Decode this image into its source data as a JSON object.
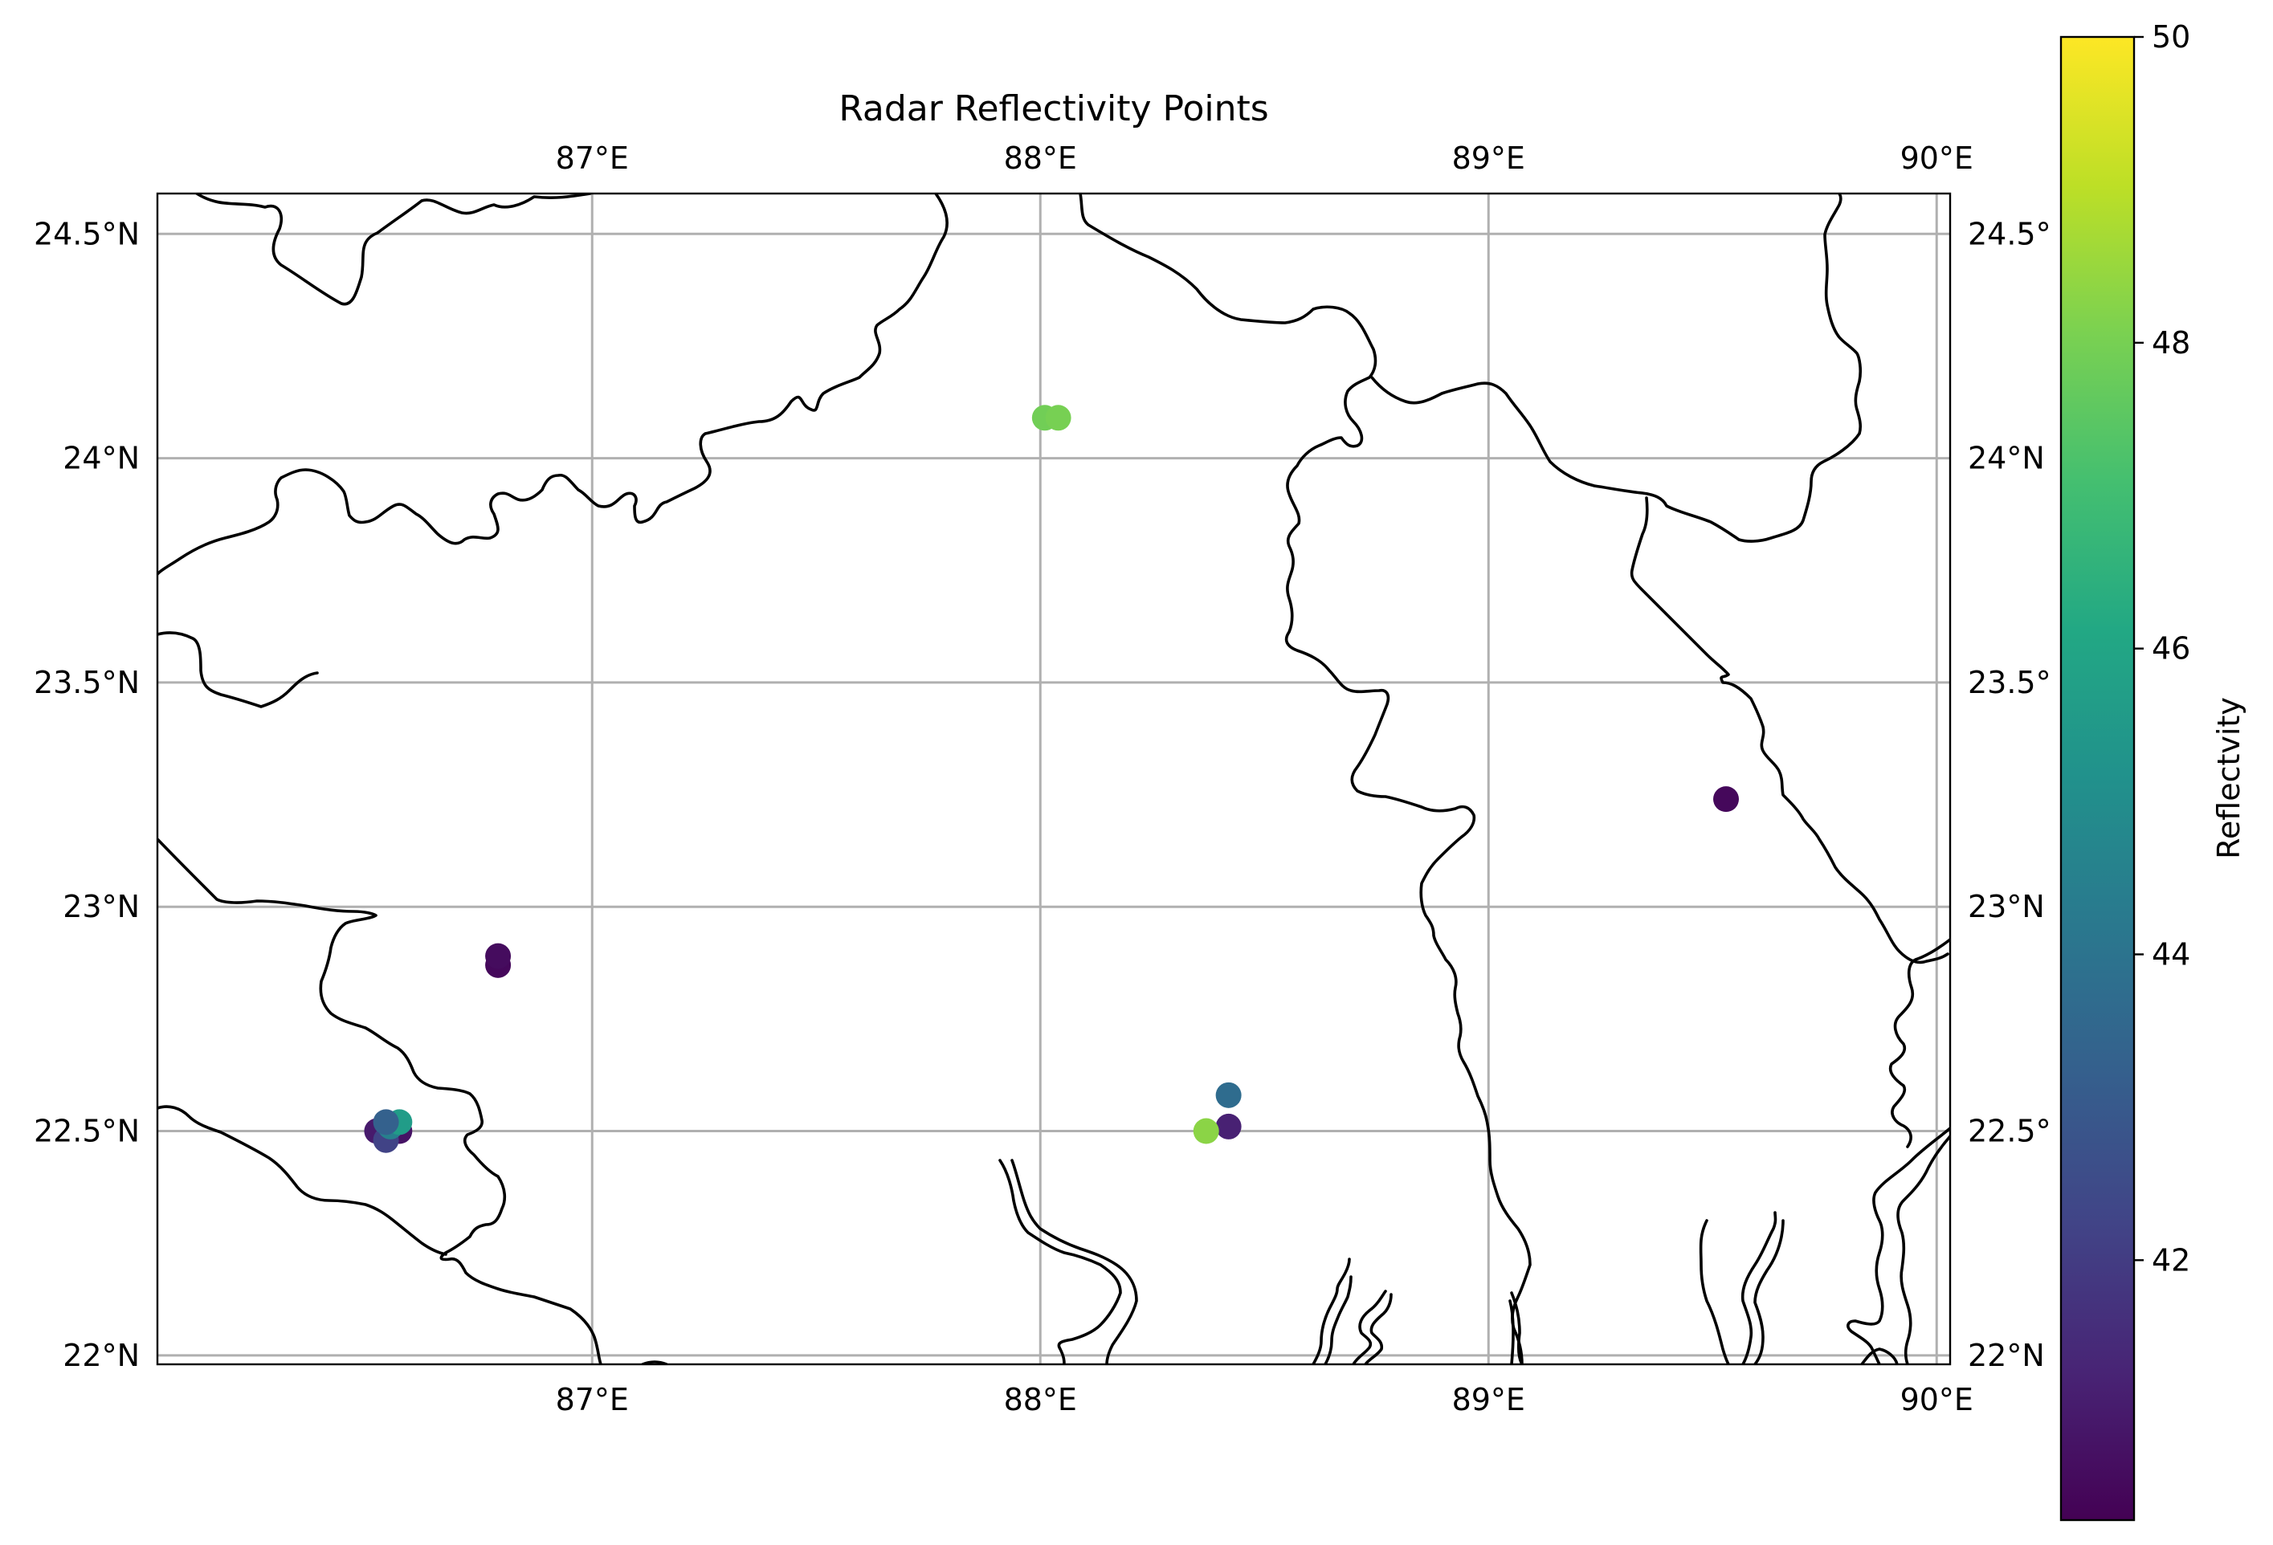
{
  "chart_data": {
    "type": "scatter",
    "title": "Radar Reflectivity Points",
    "projection": "PlateCarree",
    "xlim": [
      86.03,
      90.03
    ],
    "ylim": [
      21.98,
      24.59
    ],
    "x_ticks": [
      87,
      88,
      89,
      90
    ],
    "x_tick_labels": [
      "87°E",
      "88°E",
      "89°E",
      "90°E"
    ],
    "y_ticks": [
      22,
      22.5,
      23,
      23.5,
      24,
      24.5
    ],
    "y_tick_labels_left": [
      "22°N",
      "22.5°N",
      "23°N",
      "23.5°N",
      "24°N",
      "24.5°N"
    ],
    "y_tick_labels_right": [
      "22°N",
      "22.5°",
      "23°N",
      "23.5°",
      "24°N",
      "24.5°"
    ],
    "grid": true,
    "coastlines": true,
    "colormap": "viridis",
    "colorbar": {
      "label": "Reflectvity",
      "vmin": 40.3,
      "vmax": 50,
      "ticks": [
        42,
        44,
        46,
        48,
        50
      ],
      "tick_labels": [
        "42",
        "44",
        "46",
        "48",
        "50"
      ]
    },
    "points": [
      {
        "lon": 88.01,
        "lat": 24.09,
        "value": 47.9
      },
      {
        "lon": 88.04,
        "lat": 24.09,
        "value": 48.0
      },
      {
        "lon": 86.79,
        "lat": 22.87,
        "value": 40.5
      },
      {
        "lon": 86.79,
        "lat": 22.89,
        "value": 40.6
      },
      {
        "lon": 89.53,
        "lat": 23.24,
        "value": 40.5
      },
      {
        "lon": 88.42,
        "lat": 22.58,
        "value": 43.7
      },
      {
        "lon": 88.42,
        "lat": 22.51,
        "value": 41.2
      },
      {
        "lon": 88.37,
        "lat": 22.5,
        "value": 48.3
      },
      {
        "lon": 86.52,
        "lat": 22.5,
        "value": 41.0
      },
      {
        "lon": 86.57,
        "lat": 22.5,
        "value": 40.8
      },
      {
        "lon": 86.54,
        "lat": 22.48,
        "value": 42.2
      },
      {
        "lon": 86.55,
        "lat": 22.51,
        "value": 44.5
      },
      {
        "lon": 86.57,
        "lat": 22.52,
        "value": 45.6
      },
      {
        "lon": 86.54,
        "lat": 22.52,
        "value": 43.3
      }
    ]
  }
}
